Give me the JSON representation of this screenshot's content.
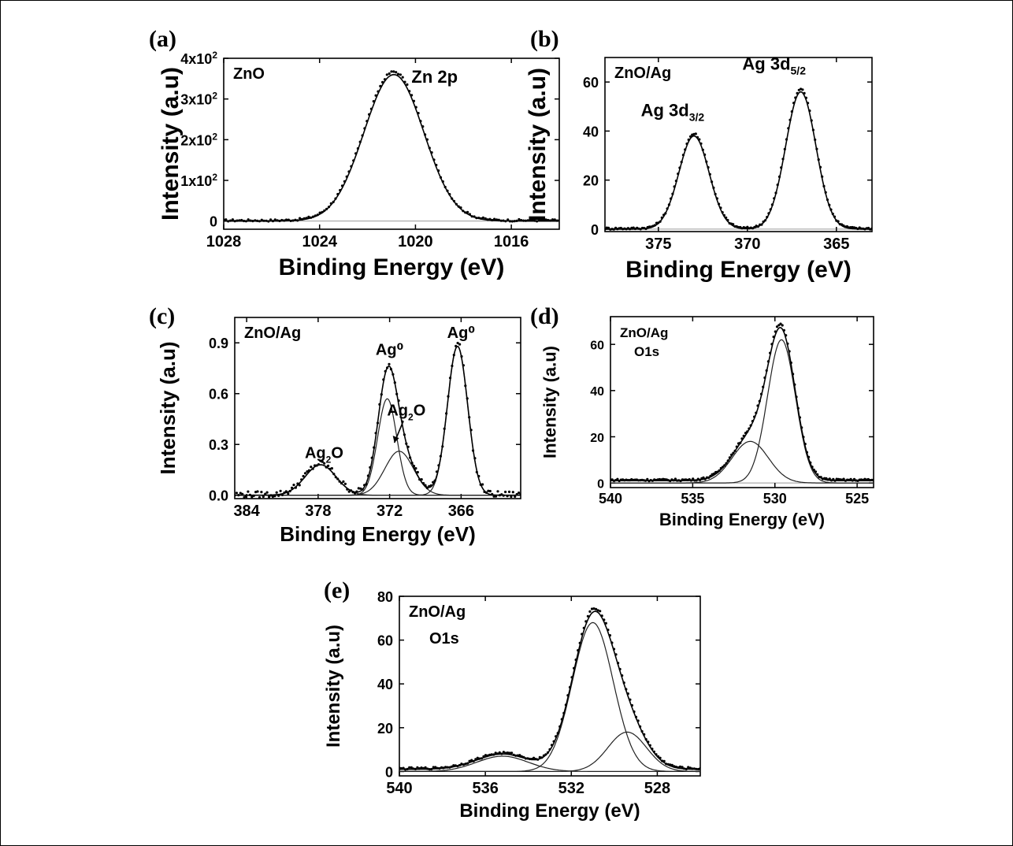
{
  "chart_data": [
    {
      "id": "a",
      "type": "line",
      "panel_label": "(a)",
      "sample_label": "ZnO",
      "peak_labels": [
        {
          "text": "Zn 2p",
          "x": 1019.2,
          "y": 340
        }
      ],
      "xlabel": "Binding Energy (eV)",
      "ylabel": "Intensity (a.u)",
      "xlim": [
        1028,
        1014
      ],
      "ylim": [
        -20,
        400
      ],
      "xticks": [
        1028,
        1024,
        1020,
        1016
      ],
      "xtick_labels": [
        "1028",
        "1024",
        "1020",
        "1016"
      ],
      "yticks": [
        0,
        100,
        200,
        300,
        400
      ],
      "ytick_labels": [
        "0",
        "1x10²",
        "2x10²",
        "3x10²",
        "4x10²"
      ],
      "series": [
        {
          "role": "fit",
          "peaks": [
            {
              "center": 1020.9,
              "height": 360,
              "sigma": 1.25
            }
          ]
        }
      ]
    },
    {
      "id": "b",
      "type": "line",
      "panel_label": "(b)",
      "sample_label": "ZnO/Ag",
      "peak_labels": [
        {
          "text": "Ag 3d",
          "sub": "3/2",
          "x": 374.2,
          "y": 46
        },
        {
          "text": "Ag 3d",
          "sub": "5/2",
          "x": 368.5,
          "y": 65
        }
      ],
      "xlabel": "Binding Energy (eV)",
      "ylabel": "Intensity (a.u)",
      "xlim": [
        378,
        363
      ],
      "ylim": [
        -1,
        70
      ],
      "xticks": [
        375,
        370,
        365
      ],
      "xtick_labels": [
        "375",
        "370",
        "365"
      ],
      "yticks": [
        0,
        20,
        40,
        60
      ],
      "ytick_labels": [
        "0",
        "20",
        "40",
        "60"
      ],
      "series": [
        {
          "role": "fit",
          "peaks": [
            {
              "center": 373.0,
              "height": 38,
              "sigma": 0.85
            },
            {
              "center": 367.0,
              "height": 56,
              "sigma": 0.85
            }
          ]
        }
      ]
    },
    {
      "id": "c",
      "type": "line",
      "panel_label": "(c)",
      "sample_label": "ZnO/Ag",
      "peak_labels": [
        {
          "text": "Ag⁰",
          "x": 372.0,
          "y": 0.83
        },
        {
          "text": "Ag⁰",
          "x": 366.0,
          "y": 0.93
        },
        {
          "text": "Ag",
          "sub": "2",
          "suffix": "O",
          "x": 370.6,
          "y": 0.47
        },
        {
          "text": "Ag",
          "sub": "2",
          "suffix": "O",
          "x": 377.5,
          "y": 0.22
        }
      ],
      "xlabel": "Binding Energy (eV)",
      "ylabel": "Intensity (a.u)",
      "xlim": [
        385,
        361
      ],
      "ylim": [
        -0.02,
        1.05
      ],
      "xticks": [
        384,
        378,
        372,
        366
      ],
      "xtick_labels": [
        "384",
        "378",
        "372",
        "366"
      ],
      "yticks": [
        0.0,
        0.3,
        0.6,
        0.9
      ],
      "ytick_labels": [
        "0.0",
        "0.3",
        "0.6",
        "0.9"
      ],
      "series": [
        {
          "role": "component",
          "name": "Ag₂O",
          "peaks": [
            {
              "center": 377.8,
              "height": 0.18,
              "sigma": 1.3
            }
          ]
        },
        {
          "role": "component",
          "name": "Ag⁰",
          "peaks": [
            {
              "center": 372.2,
              "height": 0.57,
              "sigma": 0.8
            }
          ]
        },
        {
          "role": "component",
          "name": "Ag₂O",
          "peaks": [
            {
              "center": 371.2,
              "height": 0.26,
              "sigma": 1.2
            }
          ]
        },
        {
          "role": "component",
          "name": "Ag⁰",
          "peaks": [
            {
              "center": 366.3,
              "height": 0.88,
              "sigma": 0.85
            }
          ]
        }
      ]
    },
    {
      "id": "d",
      "type": "line",
      "panel_label": "(d)",
      "sample_label": "ZnO/Ag",
      "sample_label_2": "O1s",
      "xlabel": "Binding Energy (eV)",
      "ylabel": "Intensity (a.u)",
      "xlim": [
        540,
        524
      ],
      "ylim": [
        -2,
        72
      ],
      "xticks": [
        540,
        535,
        530,
        525
      ],
      "xtick_labels": [
        "540",
        "535",
        "530",
        "525"
      ],
      "yticks": [
        0,
        20,
        40,
        60
      ],
      "ytick_labels": [
        "0",
        "20",
        "40",
        "60"
      ],
      "baseline": 1,
      "series": [
        {
          "role": "component",
          "peaks": [
            {
              "center": 531.5,
              "height": 18,
              "sigma": 1.1
            }
          ]
        },
        {
          "role": "component",
          "peaks": [
            {
              "center": 529.6,
              "height": 62,
              "sigma": 0.85
            }
          ]
        }
      ]
    },
    {
      "id": "e",
      "type": "line",
      "panel_label": "(e)",
      "sample_label": "ZnO/Ag",
      "sample_label_2": "O1s",
      "xlabel": "Binding Energy (eV)",
      "ylabel": "Intensity (a.u)",
      "xlim": [
        540,
        526
      ],
      "ylim": [
        -2,
        80
      ],
      "xticks": [
        540,
        536,
        532,
        528
      ],
      "xtick_labels": [
        "540",
        "536",
        "532",
        "528"
      ],
      "yticks": [
        0,
        20,
        40,
        60,
        80
      ],
      "ytick_labels": [
        "0",
        "20",
        "40",
        "60",
        "80"
      ],
      "baseline": 1,
      "series": [
        {
          "role": "component",
          "peaks": [
            {
              "center": 535.2,
              "height": 7,
              "sigma": 1.2
            }
          ]
        },
        {
          "role": "component",
          "peaks": [
            {
              "center": 531.0,
              "height": 68,
              "sigma": 0.95
            }
          ]
        },
        {
          "role": "component",
          "peaks": [
            {
              "center": 529.4,
              "height": 18,
              "sigma": 0.9
            }
          ]
        }
      ]
    }
  ]
}
